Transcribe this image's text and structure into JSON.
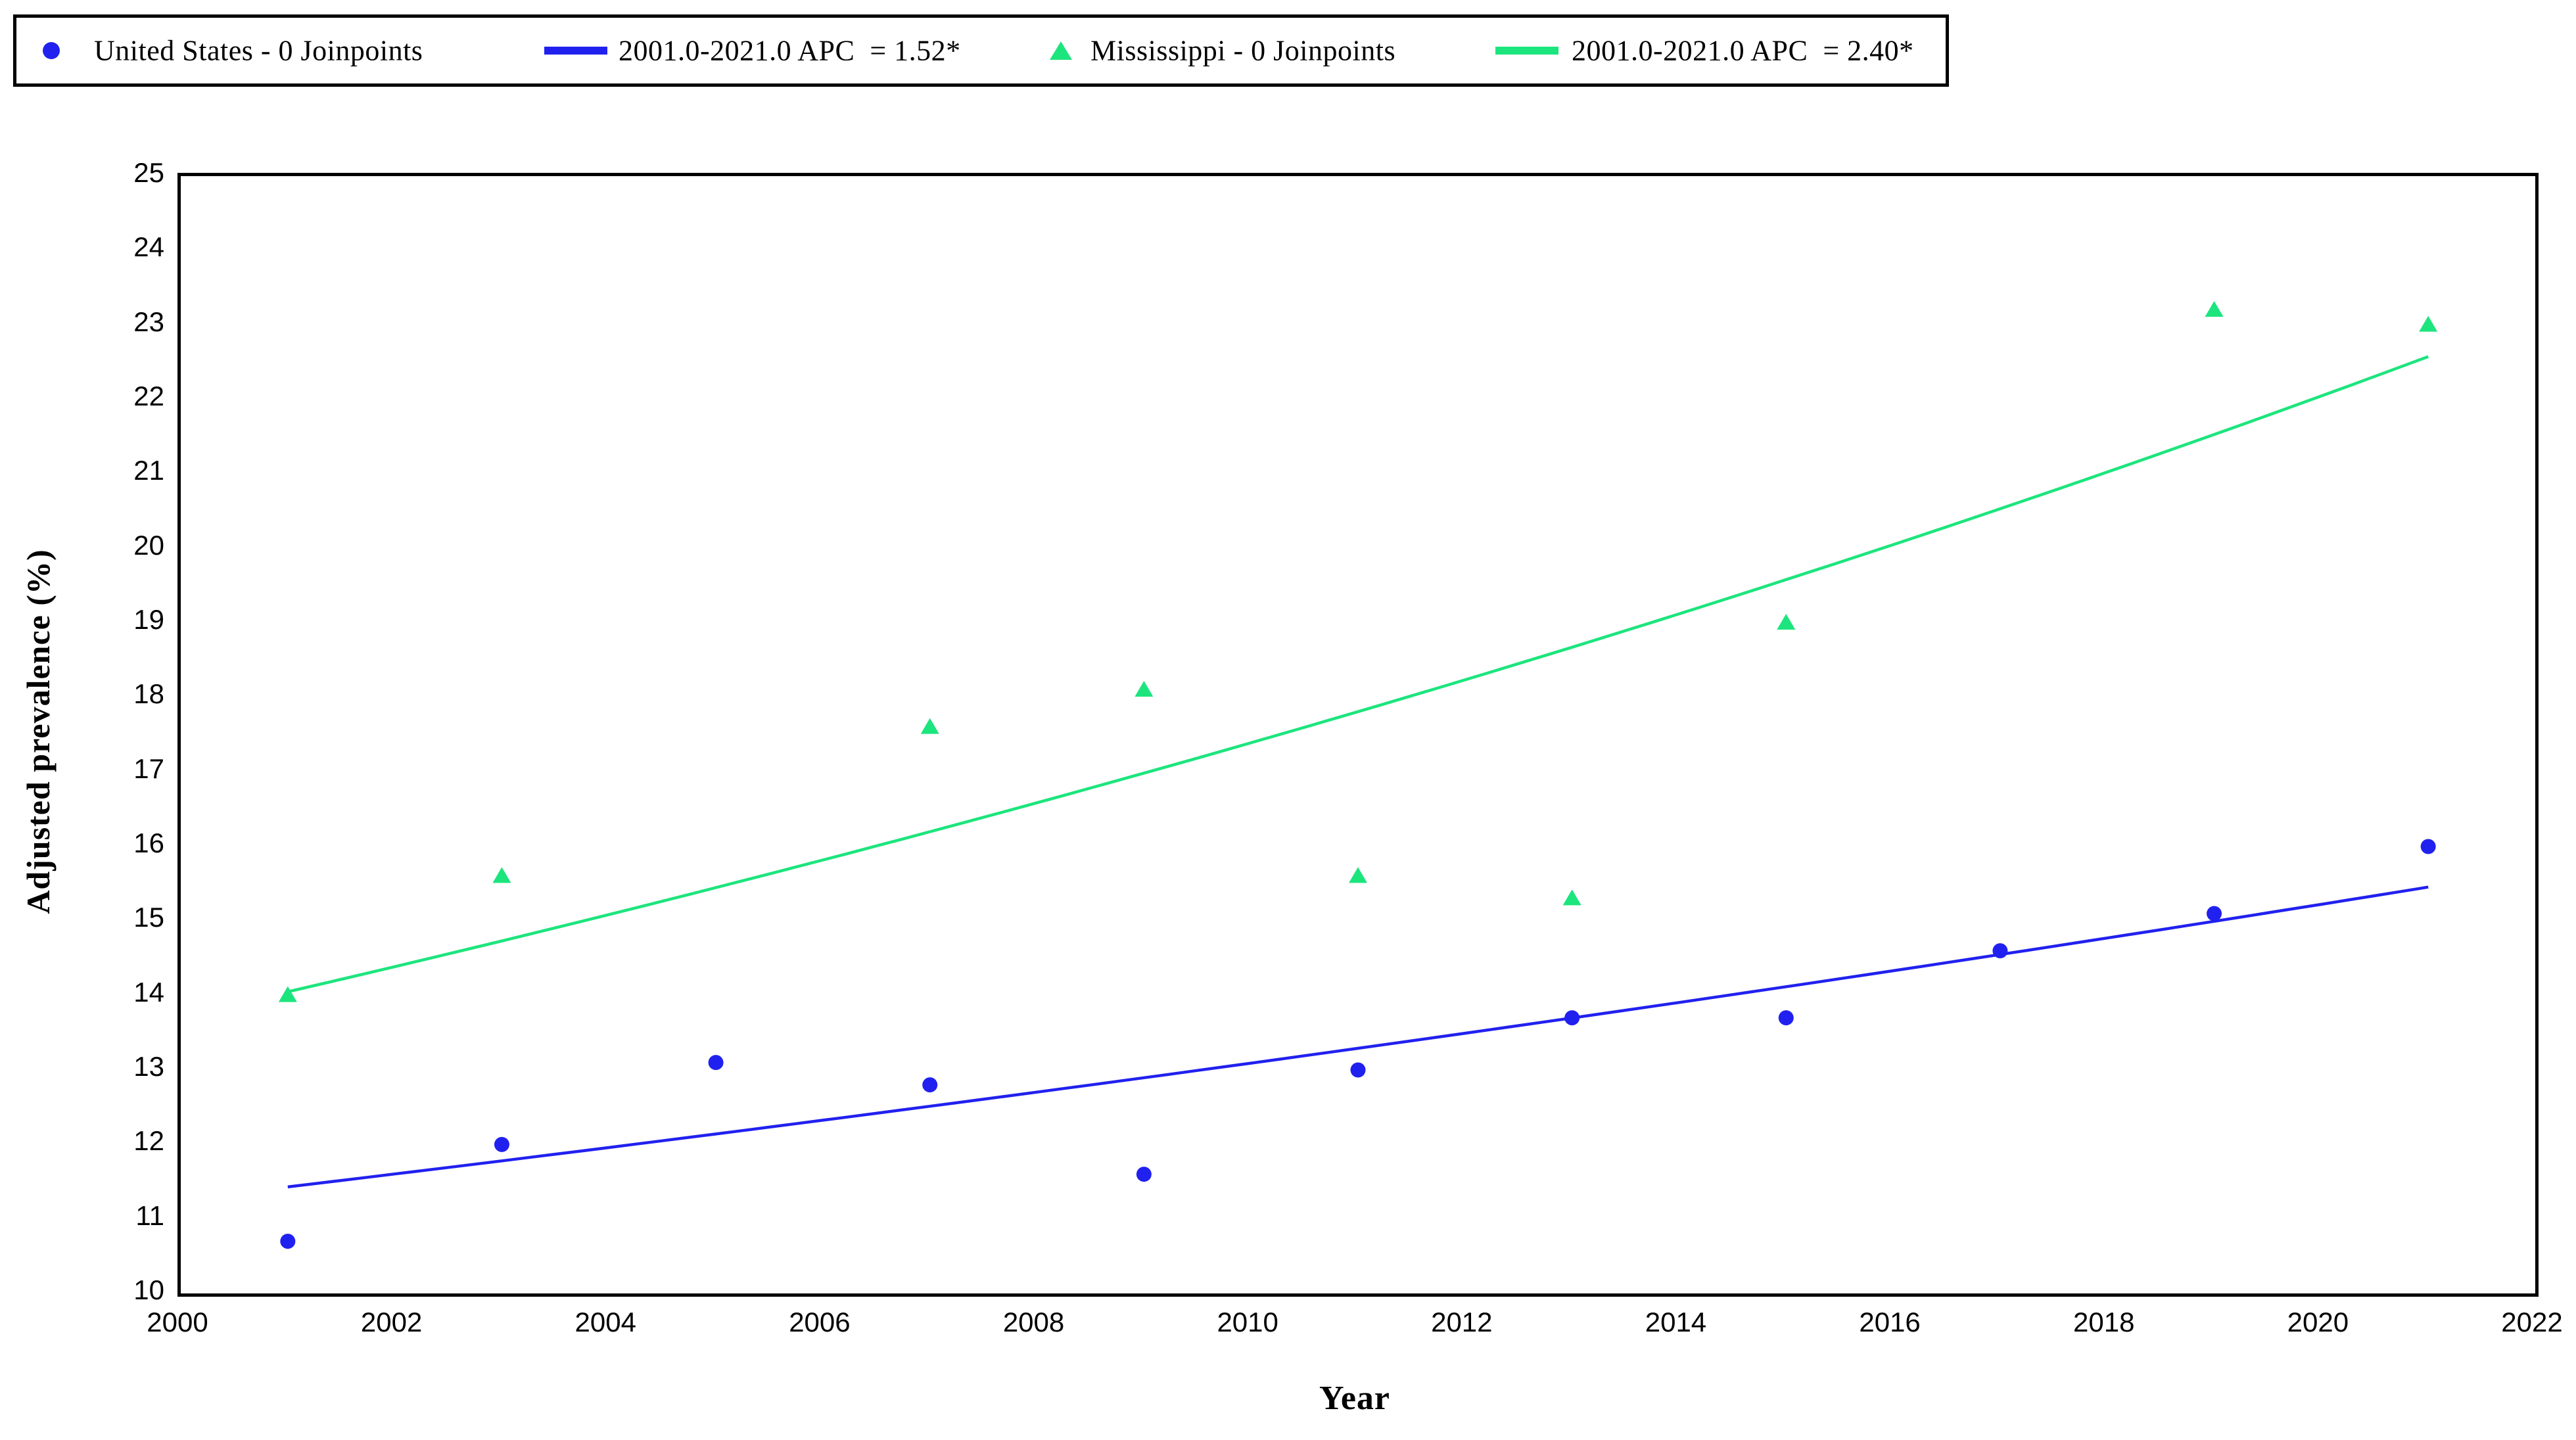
{
  "colors": {
    "us": "#2121ef",
    "ms": "#1ce57d",
    "axis": "#000000",
    "background": "#ffffff"
  },
  "legend": {
    "items": [
      {
        "label": "United States - 0 Joinpoints",
        "marker": "circle",
        "series": "us"
      },
      {
        "label": "2001.0-2021.0 APC  = 1.52*",
        "marker": "line",
        "series": "us"
      },
      {
        "label": "Mississippi - 0 Joinpoints",
        "marker": "triangle",
        "series": "ms"
      },
      {
        "label": "2001.0-2021.0 APC  = 2.40*",
        "marker": "line",
        "series": "ms"
      }
    ]
  },
  "chart_data": {
    "type": "scatter",
    "title": "",
    "xlabel": "Year",
    "ylabel": "Adjusted prevalence (%)",
    "xlim": [
      2000,
      2022
    ],
    "ylim": [
      10,
      25
    ],
    "x_tick_step": 2,
    "y_tick_step": 1,
    "grid": false,
    "legend_position": "top",
    "series": [
      {
        "name": "United States - 0 Joinpoints",
        "marker": "circle",
        "color_key": "us",
        "x": [
          2001,
          2003,
          2005,
          2007,
          2009,
          2011,
          2013,
          2015,
          2017,
          2019,
          2021
        ],
        "y": [
          10.7,
          12.0,
          13.1,
          12.8,
          11.6,
          13.0,
          13.7,
          13.7,
          14.6,
          15.1,
          16.0
        ]
      },
      {
        "name": "Mississippi - 0 Joinpoints",
        "marker": "triangle",
        "color_key": "ms",
        "x": [
          2001,
          2003,
          2007,
          2009,
          2011,
          2013,
          2015,
          2019,
          2021
        ],
        "y": [
          14.0,
          15.6,
          17.6,
          18.1,
          15.6,
          15.3,
          19.0,
          23.2,
          23.0
        ]
      }
    ],
    "trendlines": [
      {
        "name": "2001.0-2021.0 APC  = 1.52*",
        "color_key": "us",
        "start_year": 2001,
        "end_year": 2021,
        "start_value": 11.43,
        "apc_percent": 1.52
      },
      {
        "name": "2001.0-2021.0 APC  = 2.40*",
        "color_key": "ms",
        "start_year": 2001,
        "end_year": 2021,
        "start_value": 14.05,
        "apc_percent": 2.4
      }
    ]
  }
}
